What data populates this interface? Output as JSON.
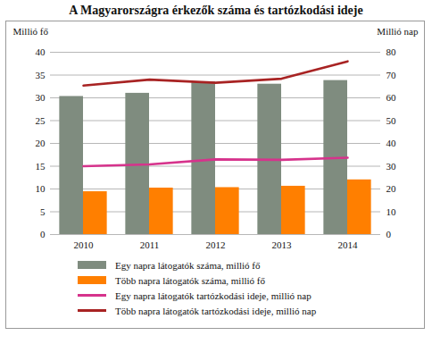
{
  "chart_data": {
    "type": "bar",
    "title": "A Magyarországra érkezők száma és tartózkodási ideje",
    "categories": [
      "2010",
      "2011",
      "2012",
      "2013",
      "2014"
    ],
    "ylabel": "Millió fő",
    "y2label": "Millió nap",
    "ylim": [
      0,
      40
    ],
    "yticks": [
      0,
      5,
      10,
      15,
      20,
      25,
      30,
      35,
      40
    ],
    "y2lim": [
      0,
      80
    ],
    "y2ticks": [
      0,
      10,
      20,
      30,
      40,
      50,
      60,
      70,
      80
    ],
    "grid": true,
    "legend": "bottom",
    "series": [
      {
        "name": "Egy napra látogatók száma, millió fő",
        "type": "bar",
        "color": "#7f8c7f",
        "values": [
          30.3,
          31.0,
          33.5,
          33.0,
          33.8
        ]
      },
      {
        "name": "Több napra látogatók száma, millió fő",
        "type": "bar",
        "color": "#ff7f00",
        "values": [
          9.4,
          10.2,
          10.3,
          10.6,
          12.0
        ]
      },
      {
        "name": "Egy napra látogatók tartózkodási ideje, millió nap",
        "type": "line",
        "axis": "y2",
        "color": "#d6338c",
        "values": [
          30.0,
          30.8,
          33.0,
          32.8,
          33.7
        ]
      },
      {
        "name": "Több napra látogatók tartózkodási ideje, millió nap",
        "type": "line",
        "axis": "y2",
        "color": "#a82323",
        "values": [
          65.4,
          68.0,
          66.6,
          68.4,
          76.0
        ]
      }
    ]
  }
}
